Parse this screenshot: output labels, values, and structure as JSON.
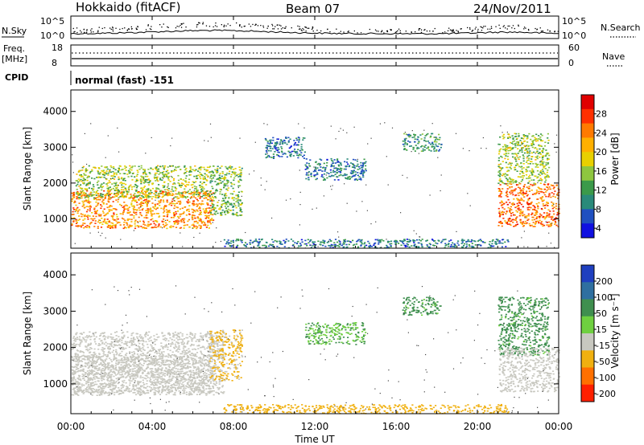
{
  "header": {
    "station": "Hokkaido (fitACF)",
    "beam": "Beam 07",
    "date": "24/Nov/2011"
  },
  "noise_panel": {
    "left_label": "N.Sky",
    "right_label": "N.Search",
    "y_ticks": [
      "10^5",
      "10^0"
    ]
  },
  "freq_panel": {
    "left_label_1": "Freq.",
    "left_label_2": "[MHz]",
    "left_ticks": [
      "18",
      "8"
    ],
    "right_label": "Nave",
    "right_ticks": [
      "60",
      "0"
    ]
  },
  "cpid": {
    "label": "CPID",
    "mode": "normal (fast) -151"
  },
  "power_colorbar": {
    "title": "Power [dB]",
    "ticks": [
      "28",
      "24",
      "20",
      "16",
      "12",
      "8",
      "4"
    ],
    "colors": [
      "#e00000",
      "#ff3000",
      "#ff7a00",
      "#ffb000",
      "#e8d000",
      "#8ec63f",
      "#3b9a4a",
      "#2a8a7a",
      "#2050c0",
      "#1010e0"
    ]
  },
  "velocity_colorbar": {
    "title": "Velocity [m s⁻¹]",
    "ticks": [
      "200",
      "100",
      "50",
      "15",
      "-15",
      "-50",
      "-100",
      "-200"
    ],
    "colors": [
      "#1f3fbf",
      "#2f6fa0",
      "#3f8f4f",
      "#6fd040",
      "#c8c8c0",
      "#f0b010",
      "#ff7000",
      "#ff2000"
    ]
  },
  "chart_data": [
    {
      "type": "heatmap",
      "title": "Power",
      "ylabel": "Slant Range [km]",
      "ylim": [
        180,
        4600
      ],
      "y_ticks": [
        1000,
        2000,
        3000,
        4000
      ],
      "xlim": [
        0,
        24
      ],
      "x_ticks": [
        "00:00",
        "04:00",
        "08:00",
        "12:00",
        "16:00",
        "20:00",
        "00:00"
      ],
      "regions": [
        {
          "t0": 0.0,
          "t1": 7.0,
          "r0": 750,
          "r1": 1800,
          "level": 22
        },
        {
          "t0": 0.2,
          "t1": 6.8,
          "r0": 1600,
          "r1": 2500,
          "level": 14
        },
        {
          "t0": 6.8,
          "t1": 8.4,
          "r0": 1100,
          "r1": 2500,
          "level": 12
        },
        {
          "t0": 9.5,
          "t1": 11.5,
          "r0": 2700,
          "r1": 3300,
          "level": 6
        },
        {
          "t0": 11.5,
          "t1": 14.5,
          "r0": 2100,
          "r1": 2700,
          "level": 6
        },
        {
          "t0": 16.3,
          "t1": 18.2,
          "r0": 2900,
          "r1": 3400,
          "level": 8
        },
        {
          "t0": 21.0,
          "t1": 24.0,
          "r0": 800,
          "r1": 2000,
          "level": 24
        },
        {
          "t0": 21.0,
          "t1": 23.5,
          "r0": 2000,
          "r1": 3400,
          "level": 14
        },
        {
          "t0": 7.5,
          "t1": 21.5,
          "r0": 200,
          "r1": 450,
          "level": 6
        }
      ]
    },
    {
      "type": "heatmap",
      "title": "Velocity",
      "ylabel": "Slant Range [km]",
      "ylim": [
        180,
        4600
      ],
      "y_ticks": [
        1000,
        2000,
        3000,
        4000
      ],
      "xlim": [
        0,
        24
      ],
      "x_ticks": [
        "00:00",
        "04:00",
        "08:00",
        "12:00",
        "16:00",
        "20:00",
        "00:00"
      ],
      "xlabel": "Time UT",
      "regions": [
        {
          "t0": 0.0,
          "t1": 7.5,
          "r0": 750,
          "r1": 2450,
          "level": 0
        },
        {
          "t0": 0.0,
          "t1": 7.0,
          "r0": 700,
          "r1": 1800,
          "level": -5
        },
        {
          "t0": 6.8,
          "t1": 8.4,
          "r0": 1100,
          "r1": 2500,
          "level": -20
        },
        {
          "t0": 11.5,
          "t1": 14.5,
          "r0": 2100,
          "r1": 2700,
          "level": 30
        },
        {
          "t0": 16.3,
          "t1": 18.2,
          "r0": 2900,
          "r1": 3400,
          "level": 40
        },
        {
          "t0": 21.0,
          "t1": 23.5,
          "r0": 1800,
          "r1": 3400,
          "level": 40
        },
        {
          "t0": 21.0,
          "t1": 24.0,
          "r0": 800,
          "r1": 2000,
          "level": 0
        },
        {
          "t0": 7.5,
          "t1": 21.5,
          "r0": 200,
          "r1": 450,
          "level": -30
        }
      ]
    }
  ]
}
